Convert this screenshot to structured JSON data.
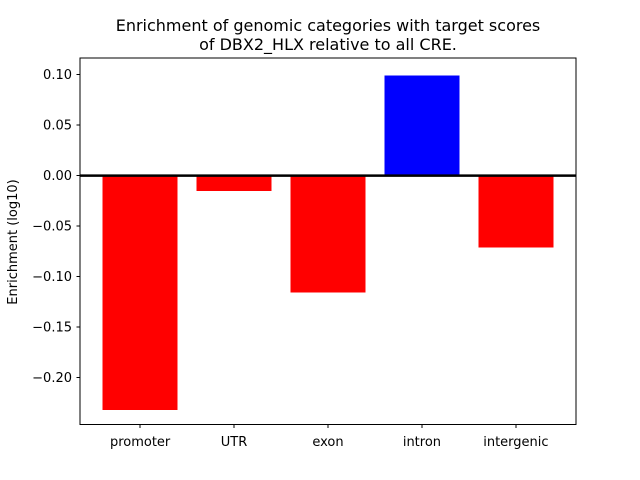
{
  "titles": {
    "line1": "Enrichment of genomic categories with target scores",
    "line2": "of DBX2_HLX relative to all CRE."
  },
  "chart_data": {
    "type": "bar",
    "title": "Enrichment of genomic categories with target scores\nof DBX2_HLX relative to all CRE.",
    "ylabel": "Enrichment (log10)",
    "xlabel": "",
    "categories": [
      "promoter",
      "UTR",
      "exon",
      "intron",
      "intergenic"
    ],
    "values": [
      -0.232,
      -0.015,
      -0.116,
      0.099,
      -0.071
    ],
    "bar_colors": [
      "#ff0000",
      "#ff0000",
      "#ff0000",
      "#0000ff",
      "#ff0000"
    ],
    "positive_color": "#0000ff",
    "negative_color": "#ff0000",
    "bar_width_fraction": 0.8,
    "ylim": [
      -0.2465,
      0.1165
    ],
    "yticks": [
      0.1,
      0.05,
      0.0,
      -0.05,
      -0.1,
      -0.15,
      -0.2
    ],
    "ytick_labels": [
      "0.10",
      "0.05",
      "0.00",
      "−0.05",
      "−0.10",
      "−0.15",
      "−0.20"
    ],
    "zero_line": true,
    "grid": false,
    "legend": "none",
    "axis_color": "#000000",
    "background": "#ffffff"
  }
}
